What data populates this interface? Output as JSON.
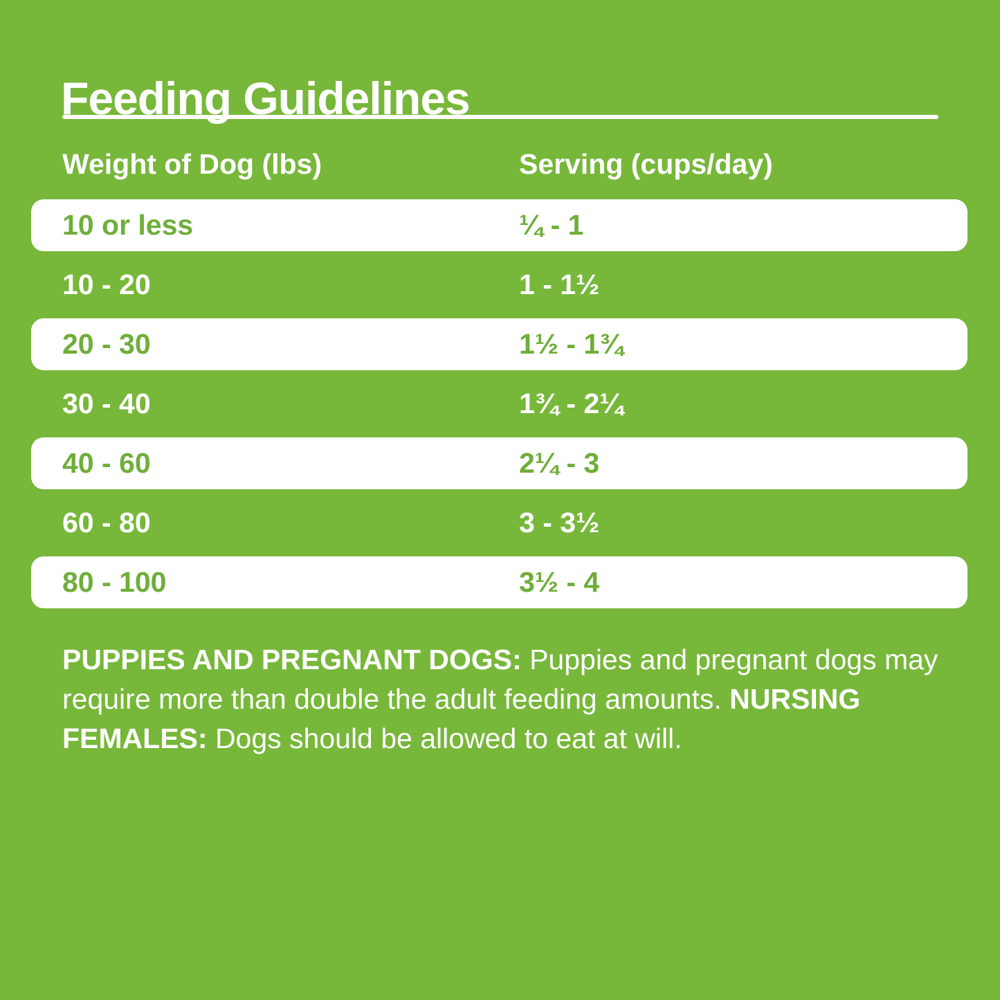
{
  "title": "Feeding Guidelines",
  "table": {
    "col1_header": "Weight of Dog (lbs)",
    "col2_header": "Serving (cups/day)",
    "rows": [
      {
        "weight": "10 or less",
        "serving": "¼ - 1"
      },
      {
        "weight": "10 - 20",
        "serving": "1 - 1½"
      },
      {
        "weight": "20 - 30",
        "serving": "1½ - 1¾"
      },
      {
        "weight": "30 - 40",
        "serving": "1¾ - 2¼"
      },
      {
        "weight": "40 - 60",
        "serving": "2¼ - 3"
      },
      {
        "weight": "60 - 80",
        "serving": "3 - 3½"
      },
      {
        "weight": "80 - 100",
        "serving": "3½ - 4"
      }
    ]
  },
  "note": {
    "bold1": "PUPPIES AND PREGNANT DOGS:",
    "text1": " Puppies and pregnant dogs may require more than double the adult feeding amounts. ",
    "bold2": "NURSING FEMALES:",
    "text2": " Dogs should be allowed to eat at will."
  },
  "colors": {
    "background_green": "#77b73a",
    "row_white": "#ffffff",
    "green_text_on_white": "#6fae3a",
    "white_text": "#ffffff"
  }
}
